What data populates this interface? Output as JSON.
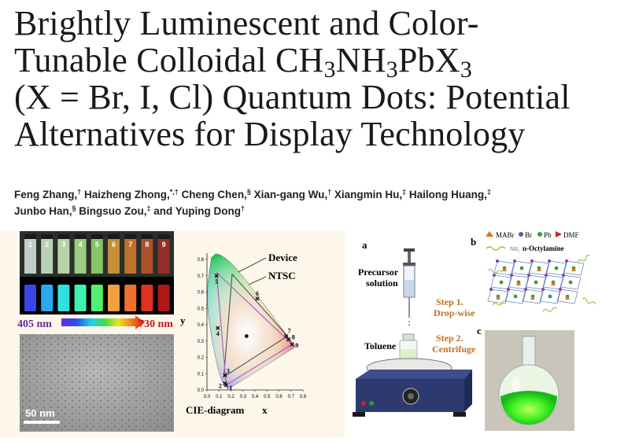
{
  "title": {
    "line1": "Brightly Luminescent and Color-",
    "line2_pre": "Tunable Colloidal CH",
    "line2_s1": "3",
    "line2_mid1": "NH",
    "line2_s2": "3",
    "line2_mid2": "PbX",
    "line2_s3": "3",
    "line3": "(X = Br, I, Cl) Quantum Dots: Potential",
    "line4": "Alternatives for Display Technology"
  },
  "authors": [
    {
      "name": "Feng Zhang,",
      "mark": "†"
    },
    {
      "name": "Haizheng Zhong,",
      "mark": "*,†"
    },
    {
      "name": "Cheng Chen,",
      "mark": "§"
    },
    {
      "name": "Xian-gang Wu,",
      "mark": "†"
    },
    {
      "name": "Xiangmin Hu,",
      "mark": "‡"
    },
    {
      "name": "Hailong Huang,",
      "mark": "‡"
    },
    {
      "name": "Junbo Han,",
      "mark": "§"
    },
    {
      "name": "Bingsuo Zou,",
      "mark": "‡"
    },
    {
      "name": "and Yuping Dong",
      "mark": "†"
    }
  ],
  "left_panel": {
    "vial_numbers": [
      "1",
      "2",
      "3",
      "4",
      "5",
      "6",
      "7",
      "8",
      "9"
    ],
    "vial_colors_day": [
      "#cfe0d8",
      "#c8e2c4",
      "#c6e6b4",
      "#a8de8a",
      "#8fd66a",
      "#d49a3a",
      "#d07a2a",
      "#b8562a",
      "#a0302a"
    ],
    "vial_colors_uv": [
      "#3a46e8",
      "#2aa8f0",
      "#30e0e0",
      "#40f0b0",
      "#50f070",
      "#f0a040",
      "#f07030",
      "#e03020",
      "#b01818"
    ],
    "wavelength_start": "405 nm",
    "wavelength_end": "730 nm",
    "scale_bar": "50 nm"
  },
  "cie": {
    "legend_device": "Device",
    "legend_ntsc": "NTSC",
    "y_axis_label": "y",
    "x_axis_label": "x",
    "caption": "CIE-diagram",
    "x_ticks": [
      "0.0",
      "0.1",
      "0.2",
      "0.3",
      "0.4",
      "0.5",
      "0.6",
      "0.7",
      "0.8"
    ],
    "y_ticks": [
      "0.0",
      "0.1",
      "0.2",
      "0.3",
      "0.4",
      "0.5",
      "0.6",
      "0.7",
      "0.8"
    ],
    "points": [
      {
        "label": "1",
        "x": 0.16,
        "y": 0.03
      },
      {
        "label": "2",
        "x": 0.15,
        "y": 0.04
      },
      {
        "label": "3",
        "x": 0.15,
        "y": 0.09
      },
      {
        "label": "4",
        "x": 0.09,
        "y": 0.38
      },
      {
        "label": "5",
        "x": 0.08,
        "y": 0.7
      },
      {
        "label": "6",
        "x": 0.42,
        "y": 0.56
      },
      {
        "label": "7",
        "x": 0.66,
        "y": 0.33
      },
      {
        "label": "8",
        "x": 0.68,
        "y": 0.31
      },
      {
        "label": "9",
        "x": 0.71,
        "y": 0.28
      }
    ]
  },
  "schematic": {
    "label_a": "a",
    "label_b": "b",
    "label_c": "c",
    "precursor_line1": "Precursor",
    "precursor_line2": "solution",
    "toluene": "Toluene",
    "step1_line1": "Step 1.",
    "step1_line2": "Drop-wise",
    "step2_line1": "Step 2.",
    "step2_line2": "Centrifuge",
    "legend_mabr": "MABr",
    "legend_br": "Br",
    "legend_pb": "Pb",
    "legend_dmf": "DMF",
    "legend_octylamine": "n-Octylamine",
    "nh2": "NH₂"
  }
}
